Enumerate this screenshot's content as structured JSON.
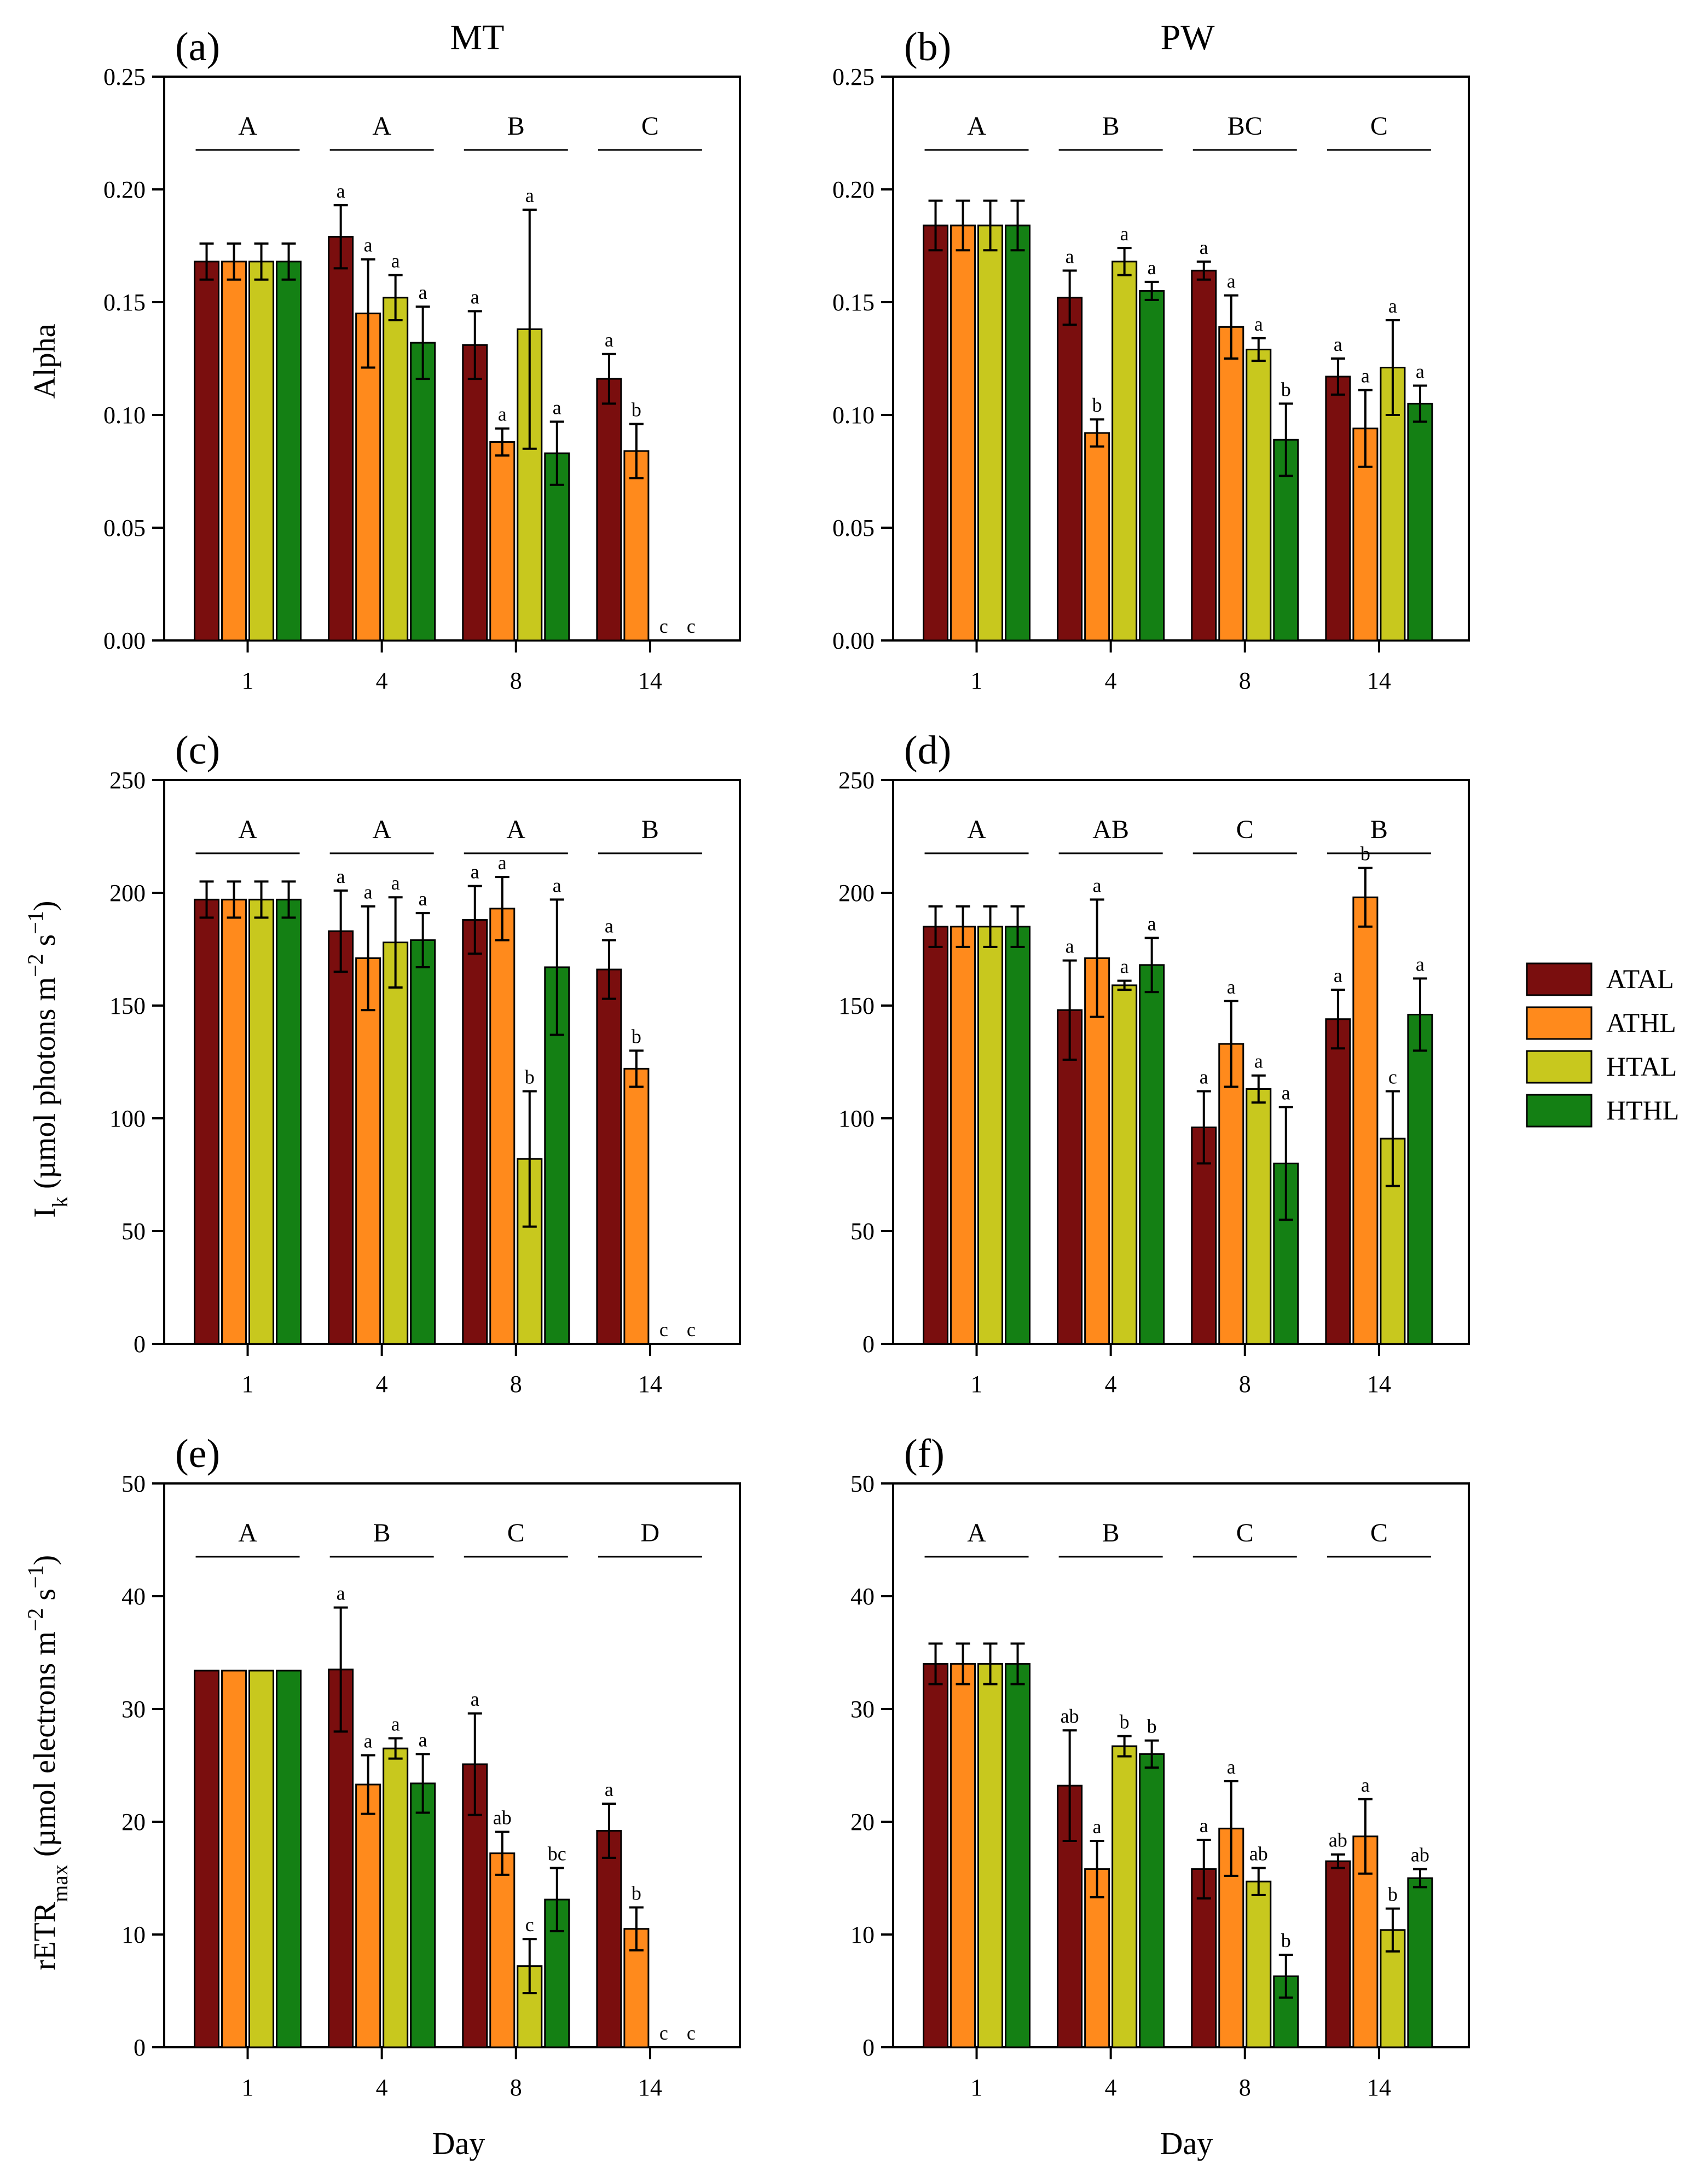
{
  "figure": {
    "col_titles": [
      "MT",
      "PW"
    ],
    "x_axis_label": "Day",
    "colors": {
      "ATAL": "#7a0e0e",
      "ATHL": "#ff8a1c",
      "HTAL": "#c8c81e",
      "HTHL": "#148014"
    },
    "legend": [
      {
        "name": "ATAL",
        "color": "#7a0e0e"
      },
      {
        "name": "ATHL",
        "color": "#ff8a1c"
      },
      {
        "name": "HTAL",
        "color": "#c8c81e"
      },
      {
        "name": "HTHL",
        "color": "#148014"
      }
    ]
  },
  "chart_data": [
    {
      "panel": "(a)",
      "type": "bar",
      "ylabel": "Alpha",
      "ylim": [
        0,
        0.25
      ],
      "yticks": [
        "0.00",
        "0.05",
        "0.10",
        "0.15",
        "0.20",
        "0.25"
      ],
      "categories": [
        "1",
        "4",
        "8",
        "14"
      ],
      "group_letters": [
        "A",
        "A",
        "B",
        "C"
      ],
      "series": [
        {
          "name": "ATAL",
          "values": [
            0.168,
            0.179,
            0.131,
            0.116
          ],
          "errors": [
            0.008,
            0.014,
            0.015,
            0.011
          ],
          "letters": [
            "",
            "a",
            "a",
            "a"
          ]
        },
        {
          "name": "ATHL",
          "values": [
            0.168,
            0.145,
            0.088,
            0.084
          ],
          "errors": [
            0.008,
            0.024,
            0.006,
            0.012
          ],
          "letters": [
            "",
            "a",
            "a",
            "b"
          ]
        },
        {
          "name": "HTAL",
          "values": [
            0.168,
            0.152,
            0.138,
            0.0
          ],
          "errors": [
            0.008,
            0.01,
            0.053,
            0
          ],
          "letters": [
            "",
            "a",
            "a",
            "c"
          ]
        },
        {
          "name": "HTHL",
          "values": [
            0.168,
            0.132,
            0.083,
            0.0
          ],
          "errors": [
            0.008,
            0.016,
            0.014,
            0
          ],
          "letters": [
            "",
            "a",
            "a",
            "c"
          ]
        }
      ]
    },
    {
      "panel": "(b)",
      "type": "bar",
      "ylabel": "",
      "ylim": [
        0,
        0.25
      ],
      "yticks": [
        "0.00",
        "0.05",
        "0.10",
        "0.15",
        "0.20",
        "0.25"
      ],
      "categories": [
        "1",
        "4",
        "8",
        "14"
      ],
      "group_letters": [
        "A",
        "B",
        "BC",
        "C"
      ],
      "series": [
        {
          "name": "ATAL",
          "values": [
            0.184,
            0.152,
            0.164,
            0.117
          ],
          "errors": [
            0.011,
            0.012,
            0.004,
            0.008
          ],
          "letters": [
            "",
            "a",
            "a",
            "a"
          ]
        },
        {
          "name": "ATHL",
          "values": [
            0.184,
            0.092,
            0.139,
            0.094
          ],
          "errors": [
            0.011,
            0.006,
            0.014,
            0.017
          ],
          "letters": [
            "",
            "b",
            "a",
            "a"
          ]
        },
        {
          "name": "HTAL",
          "values": [
            0.184,
            0.168,
            0.129,
            0.121
          ],
          "errors": [
            0.011,
            0.006,
            0.005,
            0.021
          ],
          "letters": [
            "",
            "a",
            "a",
            "a"
          ]
        },
        {
          "name": "HTHL",
          "values": [
            0.184,
            0.155,
            0.089,
            0.105
          ],
          "errors": [
            0.011,
            0.004,
            0.016,
            0.008
          ],
          "letters": [
            "",
            "a",
            "b",
            "a"
          ]
        }
      ]
    },
    {
      "panel": "(c)",
      "type": "bar",
      "ylabel_main": "I",
      "ylabel_sub": "k",
      "ylabel_rest": " (µmol photons m",
      "ylabel_exp1": "−2",
      "ylabel_mid": " s",
      "ylabel_exp2": "−1",
      "ylabel_end": ")",
      "ylim": [
        0,
        250
      ],
      "yticks": [
        "0",
        "50",
        "100",
        "150",
        "200",
        "250"
      ],
      "categories": [
        "1",
        "4",
        "8",
        "14"
      ],
      "group_letters": [
        "A",
        "A",
        "A",
        "B"
      ],
      "series": [
        {
          "name": "ATAL",
          "values": [
            197,
            183,
            188,
            166
          ],
          "errors": [
            8,
            18,
            15,
            13
          ],
          "letters": [
            "",
            "a",
            "a",
            "a"
          ]
        },
        {
          "name": "ATHL",
          "values": [
            197,
            171,
            193,
            122
          ],
          "errors": [
            8,
            23,
            14,
            8
          ],
          "letters": [
            "",
            "a",
            "a",
            "b"
          ]
        },
        {
          "name": "HTAL",
          "values": [
            197,
            178,
            82,
            0
          ],
          "errors": [
            8,
            20,
            30,
            0
          ],
          "letters": [
            "",
            "a",
            "b",
            "c"
          ]
        },
        {
          "name": "HTHL",
          "values": [
            197,
            179,
            167,
            0
          ],
          "errors": [
            8,
            12,
            30,
            0
          ],
          "letters": [
            "",
            "a",
            "a",
            "c"
          ]
        }
      ]
    },
    {
      "panel": "(d)",
      "type": "bar",
      "ylabel": "",
      "ylim": [
        0,
        250
      ],
      "yticks": [
        "0",
        "50",
        "100",
        "150",
        "200",
        "250"
      ],
      "categories": [
        "1",
        "4",
        "8",
        "14"
      ],
      "group_letters": [
        "A",
        "AB",
        "C",
        "B"
      ],
      "series": [
        {
          "name": "ATAL",
          "values": [
            185,
            148,
            96,
            144
          ],
          "errors": [
            9,
            22,
            16,
            13
          ],
          "letters": [
            "",
            "a",
            "a",
            "a"
          ]
        },
        {
          "name": "ATHL",
          "values": [
            185,
            171,
            133,
            198
          ],
          "errors": [
            9,
            26,
            19,
            13
          ],
          "letters": [
            "",
            "a",
            "a",
            "b"
          ]
        },
        {
          "name": "HTAL",
          "values": [
            185,
            159,
            113,
            91
          ],
          "errors": [
            9,
            2,
            6,
            21
          ],
          "letters": [
            "",
            "a",
            "a",
            "c"
          ]
        },
        {
          "name": "HTHL",
          "values": [
            185,
            168,
            80,
            146
          ],
          "errors": [
            9,
            12,
            25,
            16
          ],
          "letters": [
            "",
            "a",
            "a",
            "a"
          ]
        }
      ]
    },
    {
      "panel": "(e)",
      "type": "bar",
      "ylabel_main": "rETR",
      "ylabel_sub": "max",
      "ylabel_rest": " (µmol electrons m",
      "ylabel_exp1": "−2",
      "ylabel_mid": " s",
      "ylabel_exp2": "−1",
      "ylabel_end": ")",
      "ylim": [
        0,
        50
      ],
      "yticks": [
        "0",
        "10",
        "20",
        "30",
        "40",
        "50"
      ],
      "categories": [
        "1",
        "4",
        "8",
        "14"
      ],
      "group_letters": [
        "A",
        "B",
        "C",
        "D"
      ],
      "series": [
        {
          "name": "ATAL",
          "values": [
            33.4,
            33.5,
            25.1,
            19.2
          ],
          "errors": [
            0,
            5.5,
            4.5,
            2.4
          ],
          "letters": [
            "",
            "a",
            "a",
            "a"
          ]
        },
        {
          "name": "ATHL",
          "values": [
            33.4,
            23.3,
            17.2,
            10.5
          ],
          "errors": [
            0,
            2.6,
            1.9,
            1.9
          ],
          "letters": [
            "",
            "a",
            "ab",
            "b"
          ]
        },
        {
          "name": "HTAL",
          "values": [
            33.4,
            26.5,
            7.2,
            0
          ],
          "errors": [
            0,
            0.9,
            2.4,
            0
          ],
          "letters": [
            "",
            "a",
            "c",
            "c"
          ]
        },
        {
          "name": "HTHL",
          "values": [
            33.4,
            23.4,
            13.1,
            0
          ],
          "errors": [
            0,
            2.6,
            2.8,
            0
          ],
          "letters": [
            "",
            "a",
            "bc",
            "c"
          ]
        }
      ]
    },
    {
      "panel": "(f)",
      "type": "bar",
      "ylabel": "",
      "ylim": [
        0,
        50
      ],
      "yticks": [
        "0",
        "10",
        "20",
        "30",
        "40",
        "50"
      ],
      "categories": [
        "1",
        "4",
        "8",
        "14"
      ],
      "group_letters": [
        "A",
        "B",
        "C",
        "C"
      ],
      "series": [
        {
          "name": "ATAL",
          "values": [
            34.0,
            23.2,
            15.8,
            16.5
          ],
          "errors": [
            1.8,
            4.9,
            2.6,
            0.6
          ],
          "letters": [
            "",
            "ab",
            "a",
            "ab"
          ]
        },
        {
          "name": "ATHL",
          "values": [
            34.0,
            15.8,
            19.4,
            18.7
          ],
          "errors": [
            1.8,
            2.5,
            4.2,
            3.3
          ],
          "letters": [
            "",
            "a",
            "a",
            "a"
          ]
        },
        {
          "name": "HTAL",
          "values": [
            34.0,
            26.7,
            14.7,
            10.4
          ],
          "errors": [
            1.8,
            0.9,
            1.2,
            1.9
          ],
          "letters": [
            "",
            "b",
            "ab",
            "b"
          ]
        },
        {
          "name": "HTHL",
          "values": [
            34.0,
            26.0,
            6.3,
            15.0
          ],
          "errors": [
            1.8,
            1.2,
            1.9,
            0.8
          ],
          "letters": [
            "",
            "b",
            "b",
            "ab"
          ]
        }
      ]
    }
  ]
}
